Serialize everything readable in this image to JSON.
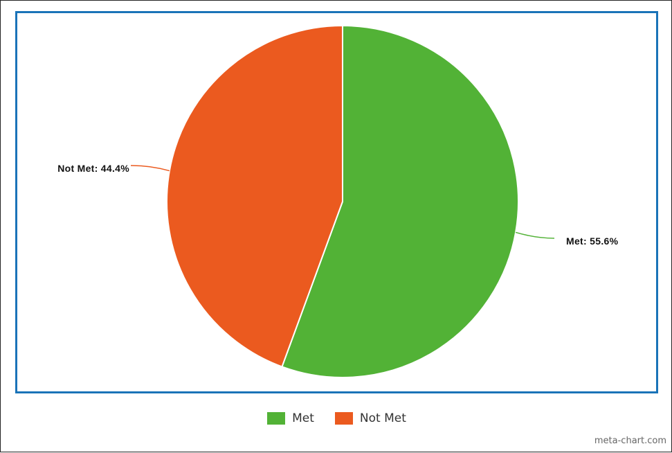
{
  "chart_data": {
    "type": "pie",
    "slices": [
      {
        "label": "Met",
        "value": 55.6,
        "color": "#52b236",
        "data_label": "Met: 55.6%"
      },
      {
        "label": "Not Met",
        "value": 44.4,
        "color": "#eb5a1f",
        "data_label": "Not Met: 44.4%"
      }
    ],
    "legend_position": "bottom-center",
    "frame_color": "#1a73b8"
  },
  "legend": {
    "items": [
      {
        "label": "Met",
        "color": "#52b236"
      },
      {
        "label": "Not Met",
        "color": "#eb5a1f"
      }
    ]
  },
  "watermark": "meta-chart.com"
}
